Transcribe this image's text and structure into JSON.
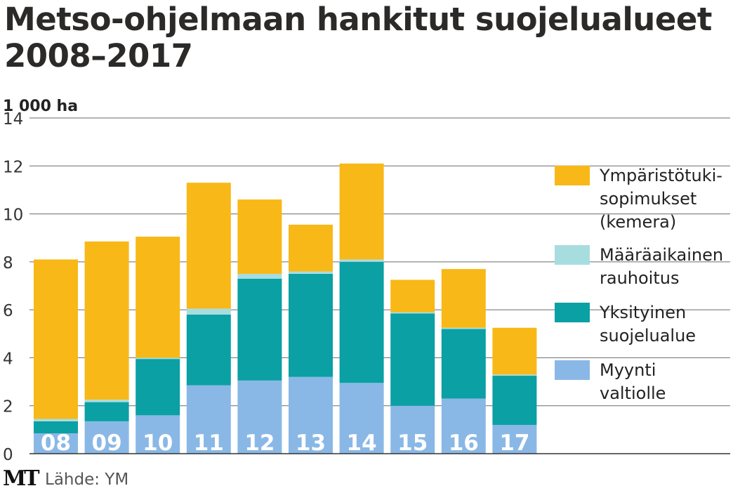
{
  "title": {
    "line1": "Metso-ohjelmaan hankitut suojelualueet",
    "line2": "2008–2017"
  },
  "chart_data": {
    "type": "bar",
    "stacked": true,
    "unit_label": "1 000 ha",
    "ylim": [
      0,
      14
    ],
    "yticks": [
      0,
      2,
      4,
      6,
      8,
      10,
      12,
      14
    ],
    "grid": true,
    "legend_position": "right",
    "categories": [
      "08",
      "09",
      "10",
      "11",
      "12",
      "13",
      "14",
      "15",
      "16",
      "17"
    ],
    "series": [
      {
        "name": "Myynti valtiolle",
        "legend_lines": [
          "Myynti",
          "valtiolle"
        ],
        "color": "#8ab8e6",
        "values": [
          0.85,
          1.35,
          1.6,
          2.85,
          3.05,
          3.2,
          2.95,
          2.0,
          2.3,
          1.2
        ]
      },
      {
        "name": "Yksityinen suojelualue",
        "legend_lines": [
          "Yksityinen",
          "suojelualue"
        ],
        "color": "#0aa0a4",
        "values": [
          0.5,
          0.8,
          2.35,
          2.95,
          4.25,
          4.3,
          5.05,
          3.85,
          2.9,
          2.05
        ]
      },
      {
        "name": "Määräaikainen rauhoitus",
        "legend_lines": [
          "Määräaikainen",
          "rauhoitus"
        ],
        "color": "#a8dde0",
        "values": [
          0.1,
          0.1,
          0.05,
          0.25,
          0.2,
          0.1,
          0.1,
          0.05,
          0.05,
          0.05
        ]
      },
      {
        "name": "Ympäristötukisopimukset (kemera)",
        "legend_lines": [
          "Ympäristötuki-",
          "sopimukset",
          "(kemera)"
        ],
        "color": "#f8b817",
        "values": [
          6.65,
          6.6,
          5.05,
          5.25,
          3.1,
          1.95,
          4.0,
          1.35,
          2.45,
          1.95
        ]
      }
    ]
  },
  "footer": {
    "logo": "MT",
    "source": "Lähde: YM"
  }
}
